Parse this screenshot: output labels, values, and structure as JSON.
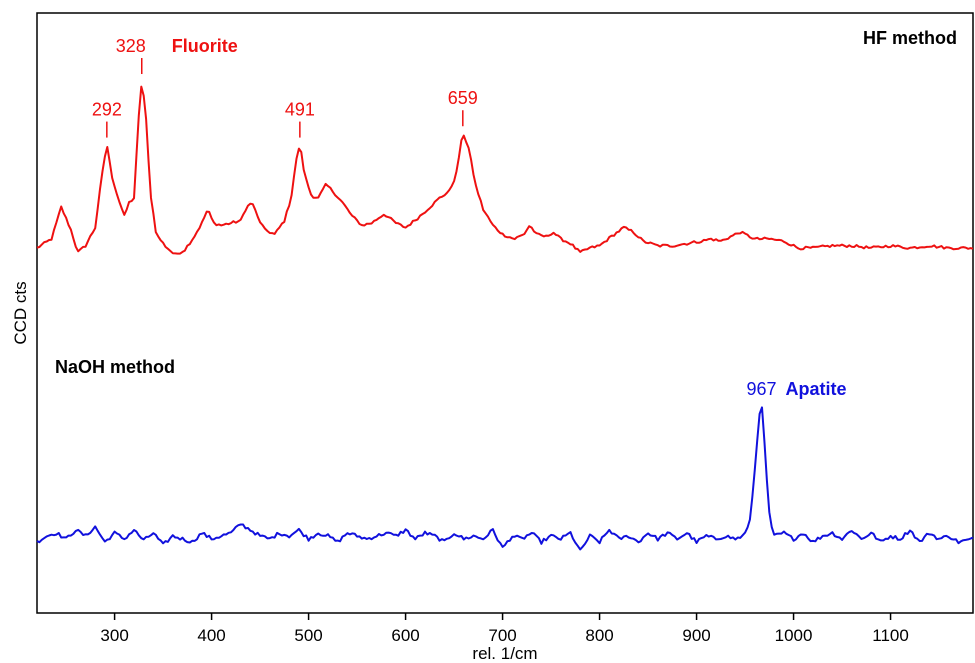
{
  "chart_data": {
    "type": "line",
    "title": "",
    "xlabel": "rel. 1/cm",
    "ylabel": "CCD cts",
    "xlim": [
      220,
      1185
    ],
    "xticks": [
      300,
      400,
      500,
      600,
      700,
      800,
      900,
      1000,
      1100
    ],
    "yticks_shown": false,
    "grid": false,
    "series": [
      {
        "label": "HF method",
        "color": "#ee1111",
        "mineral": "Fluorite",
        "x": [
          220,
          235,
          245,
          255,
          262,
          270,
          280,
          287,
          292,
          297,
          303,
          310,
          315,
          320,
          325,
          328,
          332,
          337,
          343,
          352,
          362,
          372,
          382,
          390,
          396,
          402,
          410,
          420,
          430,
          436,
          442,
          448,
          455,
          465,
          475,
          482,
          487,
          491,
          496,
          503,
          510,
          518,
          525,
          535,
          545,
          555,
          565,
          578,
          590,
          600,
          612,
          625,
          635,
          645,
          652,
          659,
          665,
          672,
          680,
          690,
          700,
          712,
          722,
          728,
          735,
          745,
          752,
          760,
          770,
          780,
          790,
          800,
          812,
          825,
          835,
          845,
          860,
          875,
          890,
          905,
          915,
          925,
          935,
          945,
          960,
          975,
          990,
          1005,
          1020,
          1040,
          1060,
          1080,
          1100,
          1120,
          1140,
          1160,
          1185
        ],
        "y": [
          0.0,
          0.2,
          0.9,
          0.4,
          -0.1,
          0.05,
          0.45,
          1.6,
          2.3,
          1.6,
          1.15,
          0.7,
          1.0,
          1.1,
          2.9,
          3.7,
          3.0,
          1.2,
          0.3,
          0.05,
          -0.15,
          -0.05,
          0.25,
          0.55,
          0.85,
          0.55,
          0.5,
          0.55,
          0.6,
          0.9,
          1.0,
          0.65,
          0.4,
          0.3,
          0.6,
          1.1,
          1.9,
          2.3,
          1.6,
          1.15,
          1.1,
          1.4,
          1.25,
          1.0,
          0.7,
          0.5,
          0.55,
          0.75,
          0.55,
          0.45,
          0.65,
          0.9,
          1.1,
          1.25,
          1.6,
          2.55,
          2.2,
          1.4,
          0.85,
          0.5,
          0.3,
          0.2,
          0.3,
          0.5,
          0.3,
          0.25,
          0.35,
          0.2,
          0.1,
          -0.1,
          0.0,
          0.05,
          0.25,
          0.45,
          0.35,
          0.15,
          0.05,
          0.05,
          0.1,
          0.15,
          0.2,
          0.15,
          0.25,
          0.35,
          0.2,
          0.2,
          0.15,
          0.0,
          0.0,
          0.05,
          0.05,
          0.0,
          0.05,
          0.0,
          0.05,
          0.0,
          0.0
        ]
      },
      {
        "label": "NaOH method",
        "color": "#1111dd",
        "mineral": "Apatite",
        "x": [
          220,
          230,
          240,
          250,
          260,
          270,
          280,
          290,
          300,
          310,
          320,
          330,
          340,
          350,
          360,
          370,
          380,
          390,
          400,
          410,
          420,
          430,
          440,
          450,
          460,
          470,
          480,
          490,
          500,
          510,
          520,
          530,
          540,
          550,
          560,
          570,
          580,
          590,
          600,
          610,
          620,
          630,
          640,
          650,
          660,
          670,
          680,
          690,
          700,
          710,
          720,
          730,
          740,
          750,
          760,
          770,
          780,
          790,
          800,
          810,
          820,
          830,
          840,
          850,
          860,
          870,
          880,
          890,
          900,
          910,
          920,
          930,
          940,
          948,
          954,
          958,
          962,
          965,
          967,
          969,
          972,
          976,
          980,
          990,
          1000,
          1010,
          1020,
          1030,
          1040,
          1050,
          1060,
          1070,
          1080,
          1090,
          1100,
          1110,
          1120,
          1130,
          1140,
          1150,
          1160,
          1170,
          1185
        ],
        "y": [
          0.0,
          0.2,
          0.3,
          0.1,
          0.4,
          0.2,
          0.5,
          0.0,
          0.3,
          0.1,
          0.4,
          0.05,
          0.3,
          -0.1,
          0.2,
          0.1,
          0.0,
          0.3,
          0.1,
          0.2,
          0.3,
          0.6,
          0.4,
          0.2,
          0.1,
          0.3,
          0.2,
          0.4,
          0.1,
          0.3,
          0.2,
          0.0,
          0.3,
          0.2,
          0.1,
          0.2,
          0.3,
          0.2,
          0.4,
          0.1,
          0.3,
          0.2,
          0.0,
          0.3,
          0.1,
          0.2,
          0.1,
          0.4,
          -0.2,
          0.2,
          0.1,
          0.3,
          0.0,
          0.2,
          0.1,
          0.3,
          -0.3,
          0.2,
          0.0,
          0.4,
          0.1,
          0.2,
          0.0,
          0.3,
          0.1,
          0.3,
          0.1,
          0.3,
          0.0,
          0.2,
          0.1,
          0.2,
          0.1,
          0.2,
          0.5,
          1.6,
          3.2,
          4.3,
          4.6,
          3.8,
          2.2,
          0.6,
          0.2,
          0.3,
          0.1,
          0.3,
          0.0,
          0.2,
          0.3,
          0.1,
          0.4,
          0.1,
          0.3,
          0.0,
          0.2,
          0.1,
          0.4,
          0.0,
          0.3,
          0.1,
          0.2,
          0.0,
          0.1
        ]
      }
    ],
    "annotations": [
      {
        "series": 0,
        "x": 292,
        "text": "292"
      },
      {
        "series": 0,
        "x": 328,
        "text": "328",
        "mineral": "Fluorite"
      },
      {
        "series": 0,
        "x": 491,
        "text": "491"
      },
      {
        "series": 0,
        "x": 659,
        "text": "659"
      },
      {
        "series": 1,
        "x": 967,
        "text": "967",
        "mineral": "Apatite"
      }
    ]
  }
}
